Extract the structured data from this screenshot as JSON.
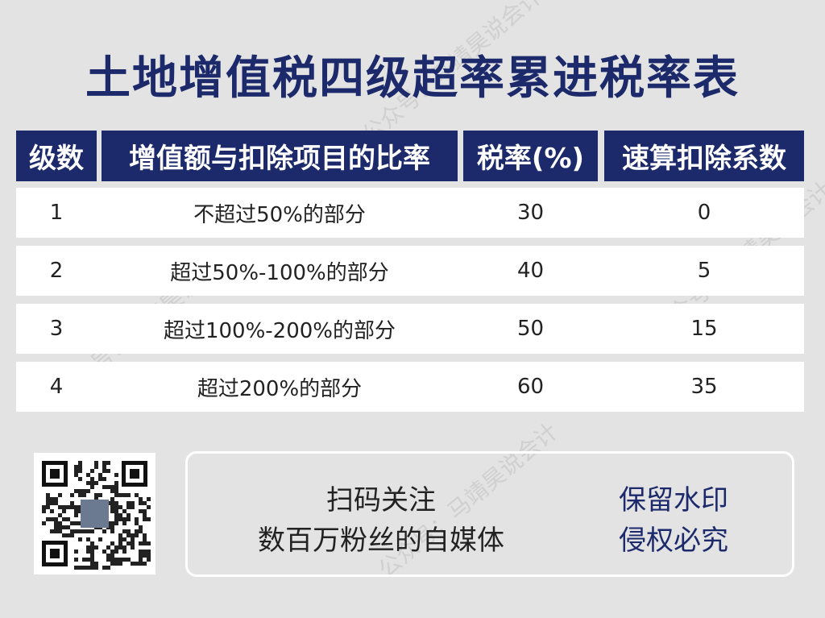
{
  "title": "土地增值税四级超率累进税率表",
  "table": {
    "headers": [
      "级数",
      "增值额与扣除项目的比率",
      "税率(%)",
      "速算扣除系数"
    ],
    "rows": [
      [
        "1",
        "不超过50%的部分",
        "30",
        "0"
      ],
      [
        "2",
        "超过50%-100%的部分",
        "40",
        "5"
      ],
      [
        "3",
        "超过100%-200%的部分",
        "50",
        "15"
      ],
      [
        "4",
        "超过200%的部分",
        "60",
        "35"
      ]
    ]
  },
  "footer": {
    "follow_line1": "扫码关注",
    "follow_line2": "数百万粉丝的自媒体",
    "notice_line1": "保留水印",
    "notice_line2": "侵权必究"
  },
  "watermark": "公众号：马靖昊说会计",
  "colors": {
    "navy": "#1c2a6b",
    "background": "#e3e3e3"
  }
}
